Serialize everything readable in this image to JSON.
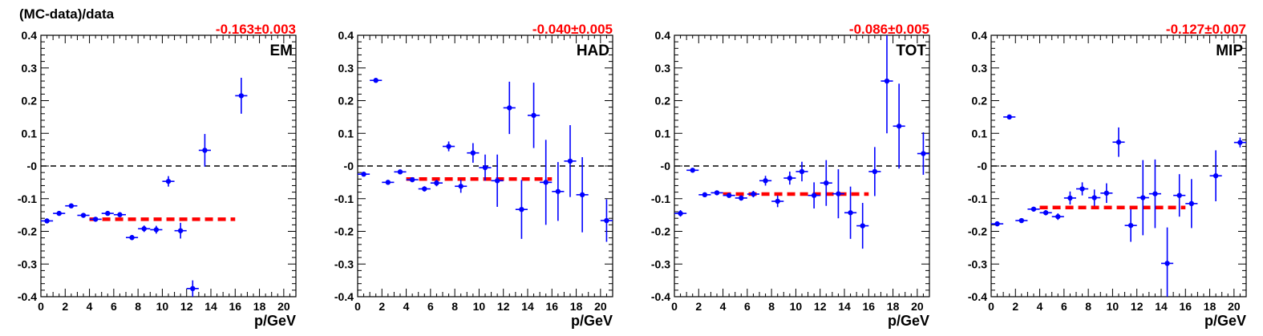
{
  "figure_title": "(MC-data)/data",
  "colors": {
    "points": "#0000ff",
    "fit": "#ff0000",
    "reference": "#000000",
    "fit_label": "#ff0000"
  },
  "chart_data": [
    {
      "type": "scatter",
      "label": "EM",
      "fit_value": "-0.163±0.003",
      "fit_level": -0.163,
      "fit_range": [
        4,
        16
      ],
      "reference_level": 0,
      "xlabel": "p/GeV",
      "xlim": [
        0,
        21
      ],
      "ylim": [
        -0.4,
        0.4
      ],
      "xticks": [
        "0",
        "2",
        "4",
        "6",
        "8",
        "10",
        "12",
        "14",
        "16",
        "18",
        "20"
      ],
      "yticks": [
        "-0.4",
        "-0.3",
        "-0.2",
        "-0.1",
        "-0",
        "0.1",
        "0.2",
        "0.3",
        "0.4"
      ],
      "points": [
        {
          "x": 0.5,
          "y": -0.168,
          "err": 0.006
        },
        {
          "x": 1.5,
          "y": -0.145,
          "err": 0.005
        },
        {
          "x": 2.5,
          "y": -0.122,
          "err": 0.005
        },
        {
          "x": 3.5,
          "y": -0.151,
          "err": 0.005
        },
        {
          "x": 4.5,
          "y": -0.163,
          "err": 0.006
        },
        {
          "x": 5.5,
          "y": -0.145,
          "err": 0.006
        },
        {
          "x": 6.5,
          "y": -0.149,
          "err": 0.007
        },
        {
          "x": 7.5,
          "y": -0.219,
          "err": 0.008
        },
        {
          "x": 8.5,
          "y": -0.192,
          "err": 0.01
        },
        {
          "x": 9.5,
          "y": -0.195,
          "err": 0.012
        },
        {
          "x": 10.5,
          "y": -0.047,
          "err": 0.016
        },
        {
          "x": 11.5,
          "y": -0.198,
          "err": 0.024
        },
        {
          "x": 12.5,
          "y": -0.375,
          "err": 0.025
        },
        {
          "x": 13.5,
          "y": 0.048,
          "err": 0.05
        },
        {
          "x": 16.5,
          "y": 0.215,
          "err": 0.055
        }
      ]
    },
    {
      "type": "scatter",
      "label": "HAD",
      "fit_value": "-0.040±0.005",
      "fit_level": -0.04,
      "fit_range": [
        4,
        16
      ],
      "reference_level": 0,
      "xlabel": "p/GeV",
      "xlim": [
        0,
        21
      ],
      "ylim": [
        -0.4,
        0.4
      ],
      "xticks": [
        "0",
        "2",
        "4",
        "6",
        "8",
        "10",
        "12",
        "14",
        "16",
        "18",
        "20"
      ],
      "yticks": [
        "-0.4",
        "-0.3",
        "-0.2",
        "-0.1",
        "-0",
        "0.1",
        "0.2",
        "0.3",
        "0.4"
      ],
      "points": [
        {
          "x": 0.5,
          "y": -0.025,
          "err": 0.005
        },
        {
          "x": 1.5,
          "y": 0.262,
          "err": 0.004
        },
        {
          "x": 2.5,
          "y": -0.05,
          "err": 0.005
        },
        {
          "x": 3.5,
          "y": -0.018,
          "err": 0.005
        },
        {
          "x": 4.5,
          "y": -0.042,
          "err": 0.006
        },
        {
          "x": 5.5,
          "y": -0.07,
          "err": 0.008
        },
        {
          "x": 6.5,
          "y": -0.052,
          "err": 0.01
        },
        {
          "x": 7.5,
          "y": 0.06,
          "err": 0.015
        },
        {
          "x": 8.5,
          "y": -0.062,
          "err": 0.02
        },
        {
          "x": 9.5,
          "y": 0.04,
          "err": 0.03
        },
        {
          "x": 10.5,
          "y": -0.005,
          "err": 0.04
        },
        {
          "x": 11.5,
          "y": -0.045,
          "err": 0.08
        },
        {
          "x": 12.5,
          "y": 0.178,
          "err": 0.08
        },
        {
          "x": 13.5,
          "y": -0.133,
          "err": 0.09
        },
        {
          "x": 14.5,
          "y": 0.155,
          "err": 0.1
        },
        {
          "x": 15.5,
          "y": -0.05,
          "err": 0.13
        },
        {
          "x": 16.5,
          "y": -0.078,
          "err": 0.09
        },
        {
          "x": 17.5,
          "y": 0.015,
          "err": 0.11
        },
        {
          "x": 18.5,
          "y": -0.088,
          "err": 0.115
        },
        {
          "x": 20.5,
          "y": -0.167,
          "err": 0.065
        }
      ]
    },
    {
      "type": "scatter",
      "label": "TOT",
      "fit_value": "-0.086±0.005",
      "fit_level": -0.086,
      "fit_range": [
        4,
        16
      ],
      "reference_level": 0,
      "xlabel": "p/GeV",
      "xlim": [
        0,
        21
      ],
      "ylim": [
        -0.4,
        0.4
      ],
      "xticks": [
        "0",
        "2",
        "4",
        "6",
        "8",
        "10",
        "12",
        "14",
        "16",
        "18",
        "20"
      ],
      "yticks": [
        "-0.4",
        "-0.3",
        "-0.2",
        "-0.1",
        "-0",
        "0.1",
        "0.2",
        "0.3",
        "0.4"
      ],
      "points": [
        {
          "x": 0.5,
          "y": -0.145,
          "err": 0.01
        },
        {
          "x": 1.5,
          "y": -0.013,
          "err": 0.005
        },
        {
          "x": 2.5,
          "y": -0.088,
          "err": 0.005
        },
        {
          "x": 3.5,
          "y": -0.082,
          "err": 0.005
        },
        {
          "x": 4.5,
          "y": -0.09,
          "err": 0.006
        },
        {
          "x": 5.5,
          "y": -0.098,
          "err": 0.008
        },
        {
          "x": 6.5,
          "y": -0.086,
          "err": 0.01
        },
        {
          "x": 7.5,
          "y": -0.045,
          "err": 0.015
        },
        {
          "x": 8.5,
          "y": -0.108,
          "err": 0.018
        },
        {
          "x": 9.5,
          "y": -0.037,
          "err": 0.02
        },
        {
          "x": 10.5,
          "y": -0.017,
          "err": 0.03
        },
        {
          "x": 11.5,
          "y": -0.09,
          "err": 0.04
        },
        {
          "x": 12.5,
          "y": -0.052,
          "err": 0.07
        },
        {
          "x": 13.5,
          "y": -0.085,
          "err": 0.075
        },
        {
          "x": 14.5,
          "y": -0.143,
          "err": 0.08
        },
        {
          "x": 15.5,
          "y": -0.183,
          "err": 0.07
        },
        {
          "x": 16.5,
          "y": -0.017,
          "err": 0.075
        },
        {
          "x": 17.5,
          "y": 0.26,
          "err": 0.16
        },
        {
          "x": 18.5,
          "y": 0.122,
          "err": 0.13
        },
        {
          "x": 20.5,
          "y": 0.038,
          "err": 0.065
        }
      ]
    },
    {
      "type": "scatter",
      "label": "MIP",
      "fit_value": "-0.127±0.007",
      "fit_level": -0.127,
      "fit_range": [
        4,
        16
      ],
      "reference_level": 0,
      "xlabel": "p/GeV",
      "xlim": [
        0,
        21
      ],
      "ylim": [
        -0.4,
        0.4
      ],
      "xticks": [
        "0",
        "2",
        "4",
        "6",
        "8",
        "10",
        "12",
        "14",
        "16",
        "18",
        "20"
      ],
      "yticks": [
        "-0.4",
        "-0.3",
        "-0.2",
        "-0.1",
        "-0",
        "0.1",
        "0.2",
        "0.3",
        "0.4"
      ],
      "points": [
        {
          "x": 0.5,
          "y": -0.177,
          "err": 0.006
        },
        {
          "x": 1.5,
          "y": 0.15,
          "err": 0.004
        },
        {
          "x": 2.5,
          "y": -0.167,
          "err": 0.005
        },
        {
          "x": 3.5,
          "y": -0.132,
          "err": 0.005
        },
        {
          "x": 4.5,
          "y": -0.143,
          "err": 0.008
        },
        {
          "x": 5.5,
          "y": -0.155,
          "err": 0.01
        },
        {
          "x": 6.5,
          "y": -0.098,
          "err": 0.02
        },
        {
          "x": 7.5,
          "y": -0.07,
          "err": 0.02
        },
        {
          "x": 8.5,
          "y": -0.097,
          "err": 0.025
        },
        {
          "x": 9.5,
          "y": -0.083,
          "err": 0.03
        },
        {
          "x": 10.5,
          "y": 0.073,
          "err": 0.045
        },
        {
          "x": 11.5,
          "y": -0.182,
          "err": 0.05
        },
        {
          "x": 12.5,
          "y": -0.097,
          "err": 0.115
        },
        {
          "x": 13.5,
          "y": -0.085,
          "err": 0.105
        },
        {
          "x": 14.5,
          "y": -0.298,
          "err": 0.11
        },
        {
          "x": 15.5,
          "y": -0.09,
          "err": 0.065
        },
        {
          "x": 16.5,
          "y": -0.115,
          "err": 0.075
        },
        {
          "x": 18.5,
          "y": -0.03,
          "err": 0.078
        },
        {
          "x": 20.5,
          "y": 0.072,
          "err": 0.015
        }
      ]
    }
  ]
}
